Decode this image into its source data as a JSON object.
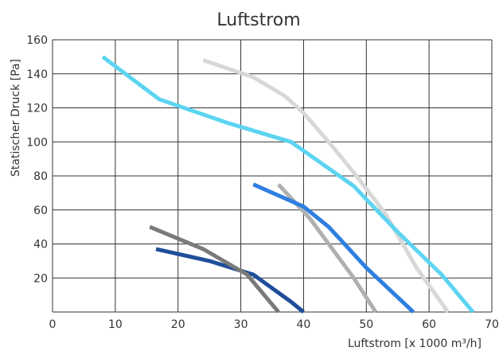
{
  "chart_data": {
    "type": "line",
    "title": "Luftstrom",
    "xlabel": "Luftstrom [x 1000 m³/h]",
    "ylabel": "Statischer Druck [Pa]",
    "xlim": [
      0,
      70
    ],
    "ylim": [
      0,
      160
    ],
    "xticks": [
      "0",
      "10",
      "20",
      "30",
      "40",
      "50",
      "60",
      "70"
    ],
    "yticks": [
      "20",
      "40",
      "60",
      "80",
      "100",
      "120",
      "140",
      "160"
    ],
    "grid": true,
    "series": [
      {
        "color": "#1f4e9a",
        "x": [
          16.5,
          25,
          32,
          35,
          38,
          40
        ],
        "y": [
          37,
          30,
          22,
          14,
          6,
          0
        ]
      },
      {
        "color": "#7a7a7a",
        "x": [
          15.5,
          24,
          31,
          33.5,
          36
        ],
        "y": [
          50,
          37,
          22,
          11,
          0
        ]
      },
      {
        "color": "#b0b0b0",
        "x": [
          36,
          41,
          44,
          48,
          51.5
        ],
        "y": [
          75,
          55,
          40,
          20,
          0
        ]
      },
      {
        "color": "#2e7fe0",
        "x": [
          32,
          40,
          44,
          50,
          57.5
        ],
        "y": [
          75,
          62,
          50,
          26,
          0
        ]
      },
      {
        "color": "#d8d8d8",
        "x": [
          24,
          32,
          37,
          40,
          44,
          48,
          53,
          58,
          63
        ],
        "y": [
          148,
          138,
          127,
          117,
          100,
          82,
          58,
          26,
          0
        ]
      },
      {
        "color": "#5dd4f2",
        "x": [
          8,
          17,
          28,
          38,
          48,
          55,
          62,
          67
        ],
        "y": [
          150,
          125,
          111,
          100,
          74,
          47,
          22,
          0
        ]
      }
    ]
  }
}
